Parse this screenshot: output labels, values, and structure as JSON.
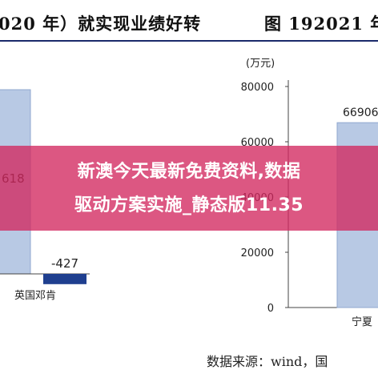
{
  "header": {
    "left_title": "020 年）就实现业绩好转",
    "right_title": "图 192021 年"
  },
  "overlay": {
    "line1": "新澳今天最新免费资料,数据",
    "line2": "驱动方案实施_静态版11.35"
  },
  "source_note": "数据来源：wind，国",
  "colors": {
    "bar_fill": "#b8c9e4",
    "bar_border": "#8fa7cf",
    "negative_bar": "#1f3f8f",
    "overlay": "#d2285f",
    "header_rule": "#1b2a6b"
  },
  "chart_data": [
    {
      "type": "bar",
      "categories": [
        "英国邓肯"
      ],
      "values": [
        -427
      ],
      "data_labels": [
        "618",
        "-427"
      ],
      "note": "left chart partially visible; one bar label shown as 618 (truncated) and a negative bar labeled -427"
    },
    {
      "type": "bar",
      "unit_label": "(万元)",
      "categories": [
        "宁夏"
      ],
      "values": [
        66906
      ],
      "data_labels": [
        "66906"
      ],
      "yticks": [
        "0",
        "20000",
        "40000",
        "60000",
        "80000"
      ],
      "ylim": [
        0,
        80000
      ]
    }
  ]
}
